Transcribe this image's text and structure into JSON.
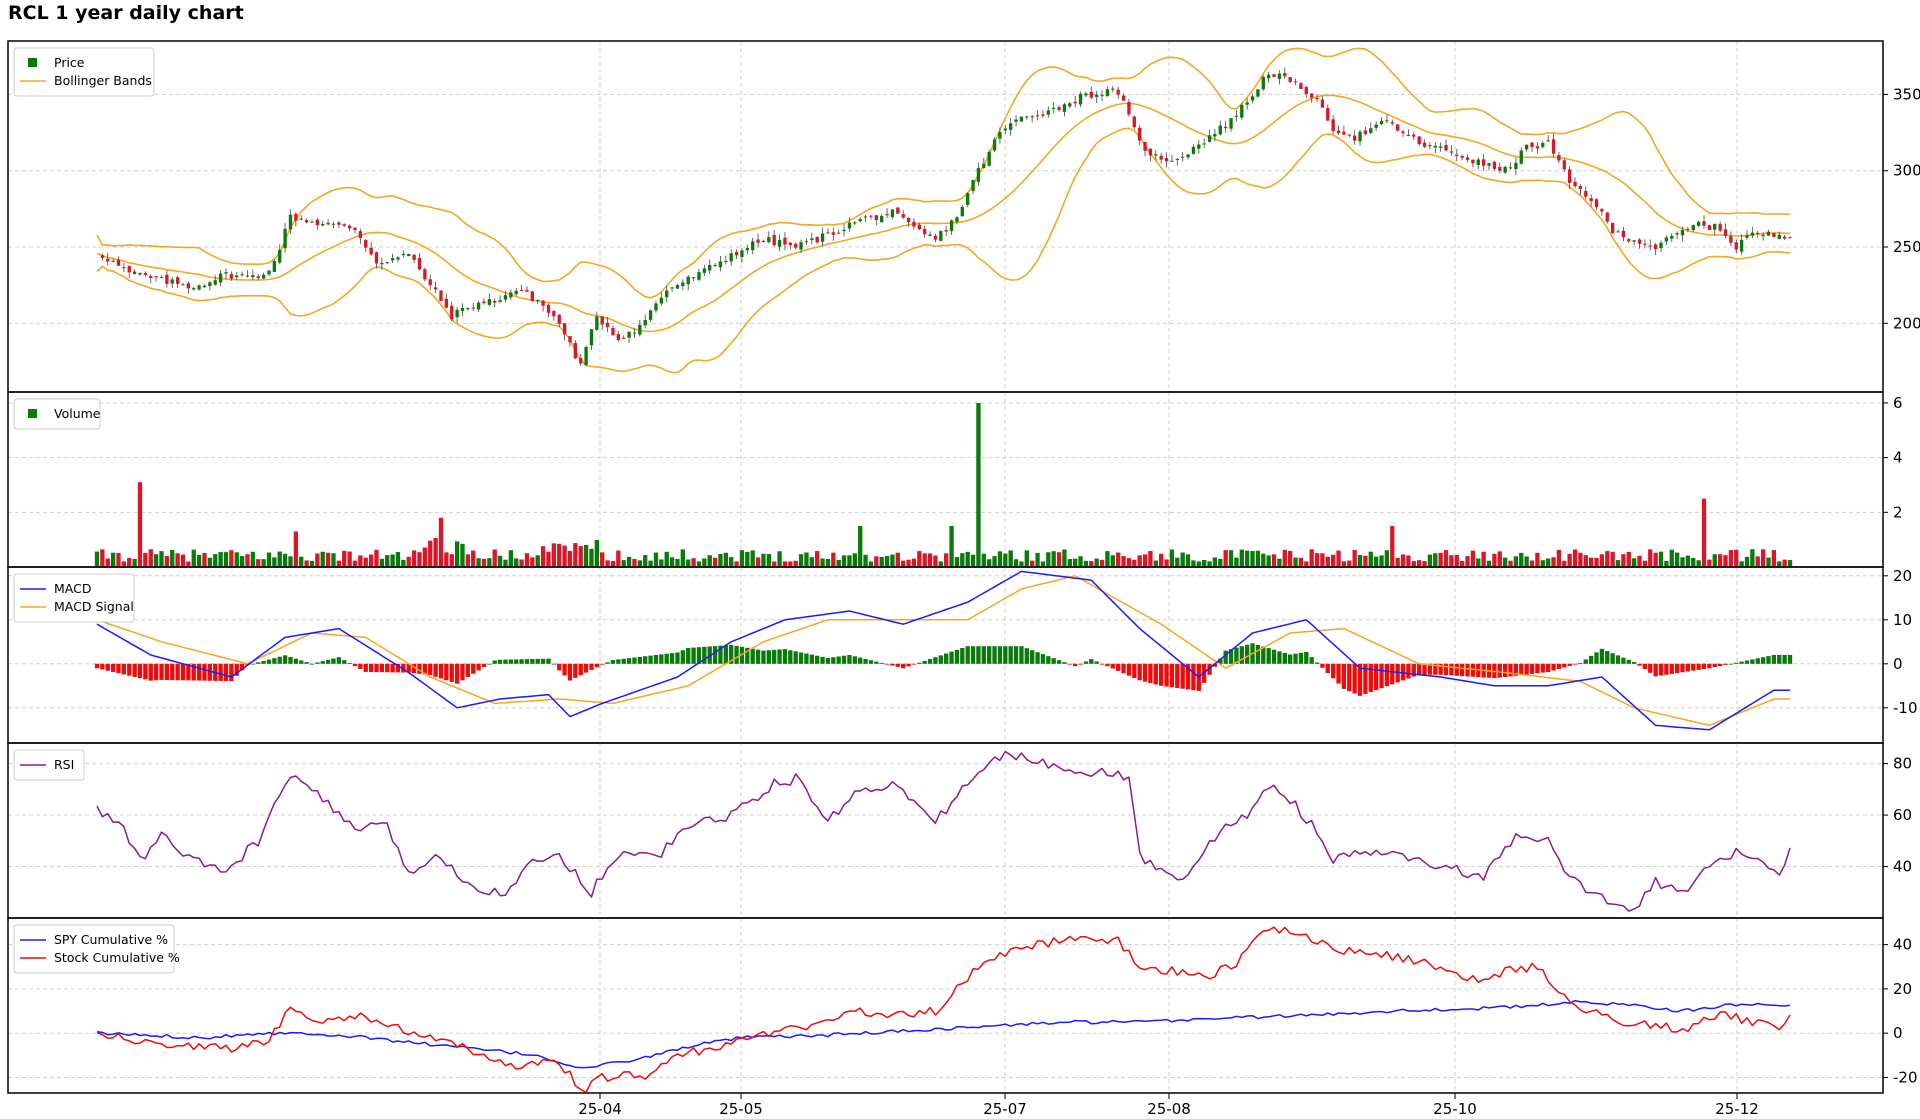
{
  "chart_data": {
    "title": "RCL 1 year daily chart",
    "type": "candlestick-multi-panel",
    "x_ticks": [
      "25-04",
      "25-05",
      "25-07",
      "25-08",
      "25-10",
      "25-12"
    ],
    "panels": [
      {
        "id": "price",
        "type": "candlestick",
        "legend": [
          "Price",
          "Bollinger Bands"
        ],
        "ylim": [
          155,
          385
        ],
        "yticks": [
          200,
          250,
          300,
          350
        ],
        "close_anchors": [
          [
            0,
            247
          ],
          [
            6,
            233
          ],
          [
            12,
            228
          ],
          [
            18,
            224
          ],
          [
            24,
            232
          ],
          [
            30,
            230
          ],
          [
            33,
            240
          ],
          [
            36,
            270
          ],
          [
            42,
            265
          ],
          [
            48,
            262
          ],
          [
            52,
            240
          ],
          [
            58,
            245
          ],
          [
            62,
            225
          ],
          [
            66,
            205
          ],
          [
            70,
            212
          ],
          [
            74,
            215
          ],
          [
            78,
            222
          ],
          [
            82,
            215
          ],
          [
            86,
            200
          ],
          [
            90,
            172
          ],
          [
            93,
            205
          ],
          [
            97,
            190
          ],
          [
            101,
            198
          ],
          [
            106,
            222
          ],
          [
            112,
            232
          ],
          [
            118,
            245
          ],
          [
            124,
            255
          ],
          [
            130,
            250
          ],
          [
            136,
            258
          ],
          [
            142,
            268
          ],
          [
            148,
            272
          ],
          [
            152,
            262
          ],
          [
            156,
            255
          ],
          [
            160,
            270
          ],
          [
            164,
            300
          ],
          [
            168,
            325
          ],
          [
            172,
            335
          ],
          [
            178,
            340
          ],
          [
            184,
            350
          ],
          [
            190,
            352
          ],
          [
            194,
            318
          ],
          [
            198,
            306
          ],
          [
            202,
            310
          ],
          [
            206,
            320
          ],
          [
            210,
            330
          ],
          [
            214,
            345
          ],
          [
            218,
            365
          ],
          [
            222,
            358
          ],
          [
            226,
            350
          ],
          [
            230,
            328
          ],
          [
            234,
            322
          ],
          [
            240,
            332
          ],
          [
            246,
            318
          ],
          [
            252,
            312
          ],
          [
            258,
            304
          ],
          [
            262,
            300
          ],
          [
            266,
            315
          ],
          [
            270,
            318
          ],
          [
            274,
            292
          ],
          [
            278,
            282
          ],
          [
            282,
            260
          ],
          [
            286,
            255
          ],
          [
            290,
            250
          ],
          [
            294,
            258
          ],
          [
            298,
            265
          ],
          [
            302,
            262
          ],
          [
            305,
            250
          ],
          [
            307,
            258
          ]
        ],
        "bollinger_note": "upper/middle/lower bands, 20-day"
      },
      {
        "id": "volume",
        "type": "bar",
        "legend": [
          "Volume"
        ],
        "ylim": [
          0,
          6.4
        ],
        "yticks": [
          2,
          4,
          6
        ],
        "spikes": [
          [
            8,
            3.1
          ],
          [
            37,
            1.3
          ],
          [
            64,
            1.8
          ],
          [
            142,
            1.5
          ],
          [
            159,
            1.5
          ],
          [
            164,
            6.0
          ],
          [
            241,
            1.5
          ],
          [
            299,
            2.5
          ]
        ]
      },
      {
        "id": "macd",
        "type": "line+histogram",
        "legend": [
          "MACD",
          "MACD Signal"
        ],
        "ylim": [
          -18,
          22
        ],
        "yticks": [
          -10,
          0,
          10,
          20
        ],
        "macd_anchors": [
          [
            0,
            9
          ],
          [
            10,
            2
          ],
          [
            25,
            -3
          ],
          [
            35,
            6
          ],
          [
            45,
            8
          ],
          [
            58,
            -2
          ],
          [
            67,
            -10
          ],
          [
            75,
            -8
          ],
          [
            84,
            -7
          ],
          [
            88,
            -12
          ],
          [
            94,
            -9
          ],
          [
            108,
            -3
          ],
          [
            118,
            5
          ],
          [
            128,
            10
          ],
          [
            140,
            12
          ],
          [
            150,
            9
          ],
          [
            162,
            14
          ],
          [
            172,
            21
          ],
          [
            185,
            19
          ],
          [
            194,
            8
          ],
          [
            205,
            -3
          ],
          [
            215,
            7
          ],
          [
            225,
            10
          ],
          [
            235,
            -1
          ],
          [
            250,
            -3
          ],
          [
            260,
            -5
          ],
          [
            270,
            -5
          ],
          [
            280,
            -3
          ],
          [
            290,
            -14
          ],
          [
            300,
            -15
          ],
          [
            312,
            -6
          ]
        ],
        "signal_anchors": [
          [
            0,
            10
          ],
          [
            12,
            5
          ],
          [
            28,
            0
          ],
          [
            40,
            7
          ],
          [
            50,
            6
          ],
          [
            62,
            -3
          ],
          [
            74,
            -9
          ],
          [
            86,
            -8
          ],
          [
            96,
            -9
          ],
          [
            110,
            -5
          ],
          [
            124,
            5
          ],
          [
            136,
            10
          ],
          [
            150,
            10
          ],
          [
            162,
            10
          ],
          [
            172,
            17
          ],
          [
            182,
            20
          ],
          [
            198,
            9
          ],
          [
            210,
            -1
          ],
          [
            222,
            7
          ],
          [
            232,
            8
          ],
          [
            246,
            0
          ],
          [
            262,
            -2
          ],
          [
            276,
            -4
          ],
          [
            286,
            -10
          ],
          [
            300,
            -14
          ],
          [
            312,
            -8
          ]
        ]
      },
      {
        "id": "rsi",
        "type": "line",
        "legend": [
          "RSI"
        ],
        "ylim": [
          20,
          88
        ],
        "yticks": [
          40,
          60,
          80
        ],
        "anchors": [
          [
            0,
            62
          ],
          [
            5,
            55
          ],
          [
            8,
            42
          ],
          [
            12,
            52
          ],
          [
            18,
            42
          ],
          [
            24,
            38
          ],
          [
            30,
            50
          ],
          [
            35,
            72
          ],
          [
            38,
            74
          ],
          [
            44,
            62
          ],
          [
            48,
            55
          ],
          [
            54,
            55
          ],
          [
            58,
            38
          ],
          [
            64,
            44
          ],
          [
            70,
            32
          ],
          [
            76,
            30
          ],
          [
            80,
            40
          ],
          [
            86,
            45
          ],
          [
            92,
            30
          ],
          [
            96,
            43
          ],
          [
            100,
            46
          ],
          [
            104,
            43
          ],
          [
            110,
            56
          ],
          [
            118,
            60
          ],
          [
            126,
            72
          ],
          [
            130,
            74
          ],
          [
            136,
            58
          ],
          [
            142,
            70
          ],
          [
            148,
            72
          ],
          [
            152,
            65
          ],
          [
            156,
            57
          ],
          [
            160,
            68
          ],
          [
            166,
            80
          ],
          [
            170,
            84
          ],
          [
            176,
            80
          ],
          [
            182,
            78
          ],
          [
            188,
            76
          ],
          [
            192,
            75
          ],
          [
            194,
            44
          ],
          [
            198,
            38
          ],
          [
            202,
            36
          ],
          [
            206,
            46
          ],
          [
            210,
            55
          ],
          [
            214,
            60
          ],
          [
            218,
            72
          ],
          [
            222,
            66
          ],
          [
            226,
            56
          ],
          [
            230,
            42
          ],
          [
            236,
            46
          ],
          [
            242,
            44
          ],
          [
            250,
            40
          ],
          [
            258,
            36
          ],
          [
            264,
            51
          ],
          [
            270,
            50
          ],
          [
            274,
            35
          ],
          [
            280,
            28
          ],
          [
            286,
            24
          ],
          [
            290,
            34
          ],
          [
            296,
            30
          ],
          [
            300,
            40
          ],
          [
            305,
            46
          ],
          [
            310,
            42
          ],
          [
            313,
            36
          ],
          [
            315,
            46
          ]
        ]
      },
      {
        "id": "cumulative",
        "type": "line",
        "legend": [
          "SPY Cumulative %",
          "Stock Cumulative %"
        ],
        "ylim": [
          -27,
          52
        ],
        "yticks": [
          -20,
          0,
          20,
          40
        ],
        "spy_anchors": [
          [
            0,
            0
          ],
          [
            10,
            -1
          ],
          [
            20,
            -2
          ],
          [
            30,
            0
          ],
          [
            40,
            0
          ],
          [
            50,
            -2
          ],
          [
            58,
            -4
          ],
          [
            66,
            -6
          ],
          [
            74,
            -8
          ],
          [
            82,
            -10
          ],
          [
            90,
            -16
          ],
          [
            95,
            -14
          ],
          [
            102,
            -11
          ],
          [
            110,
            -6
          ],
          [
            120,
            -2
          ],
          [
            135,
            -1
          ],
          [
            150,
            1
          ],
          [
            165,
            3
          ],
          [
            180,
            5
          ],
          [
            195,
            5
          ],
          [
            210,
            7
          ],
          [
            225,
            8
          ],
          [
            240,
            10
          ],
          [
            255,
            11
          ],
          [
            265,
            12
          ],
          [
            275,
            14
          ],
          [
            285,
            13
          ],
          [
            295,
            10
          ],
          [
            305,
            13
          ],
          [
            315,
            13
          ]
        ],
        "stock_anchors": [
          [
            0,
            0
          ],
          [
            8,
            -4
          ],
          [
            15,
            -5
          ],
          [
            25,
            -7
          ],
          [
            32,
            -3
          ],
          [
            36,
            11
          ],
          [
            42,
            6
          ],
          [
            50,
            8
          ],
          [
            58,
            0
          ],
          [
            66,
            -5
          ],
          [
            72,
            -10
          ],
          [
            78,
            -15
          ],
          [
            84,
            -12
          ],
          [
            88,
            -19
          ],
          [
            90,
            -27
          ],
          [
            94,
            -20
          ],
          [
            102,
            -19
          ],
          [
            108,
            -10
          ],
          [
            118,
            -5
          ],
          [
            124,
            0
          ],
          [
            132,
            3
          ],
          [
            140,
            10
          ],
          [
            148,
            8
          ],
          [
            156,
            10
          ],
          [
            164,
            30
          ],
          [
            170,
            38
          ],
          [
            180,
            42
          ],
          [
            190,
            42
          ],
          [
            194,
            30
          ],
          [
            200,
            28
          ],
          [
            206,
            25
          ],
          [
            212,
            32
          ],
          [
            218,
            48
          ],
          [
            224,
            45
          ],
          [
            230,
            38
          ],
          [
            240,
            35
          ],
          [
            250,
            30
          ],
          [
            256,
            24
          ],
          [
            262,
            28
          ],
          [
            268,
            30
          ],
          [
            272,
            17
          ],
          [
            278,
            10
          ],
          [
            284,
            5
          ],
          [
            290,
            3
          ],
          [
            296,
            2
          ],
          [
            302,
            9
          ],
          [
            308,
            5
          ],
          [
            313,
            3
          ],
          [
            315,
            7
          ]
        ]
      }
    ]
  }
}
